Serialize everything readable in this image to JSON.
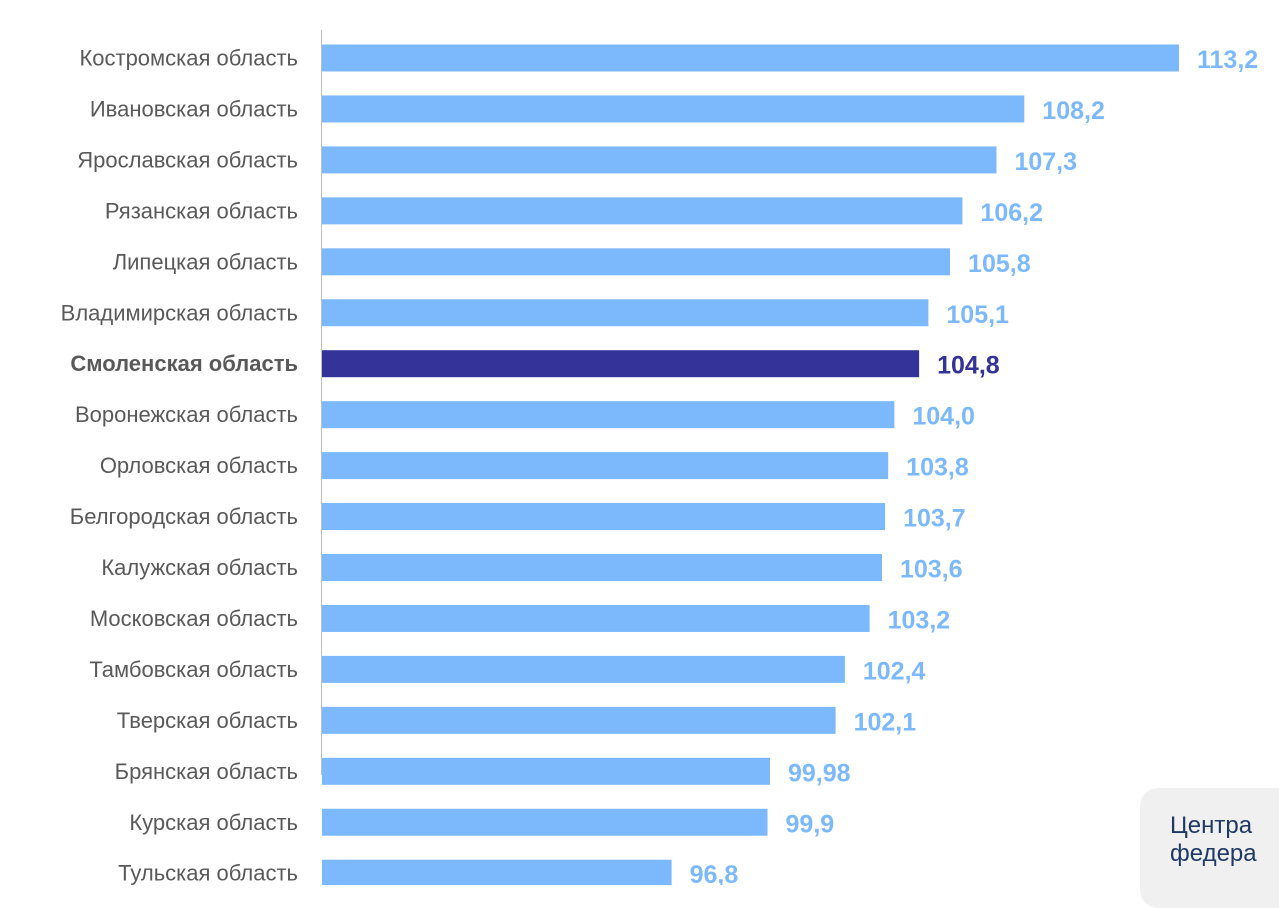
{
  "chart_data": {
    "type": "bar",
    "orientation": "horizontal",
    "categories": [
      "Костромская область",
      "Ивановская область",
      "Ярославская область",
      "Рязанская область",
      "Липецкая область",
      "Владимирская область",
      "Смоленская область",
      "Воронежская область",
      "Орловская область",
      "Белгородская область",
      "Калужская область",
      "Московская область",
      "Тамбовская область",
      "Тверская область",
      "Брянская область",
      "Курская область",
      "Тульская область"
    ],
    "values": [
      113.2,
      108.2,
      107.3,
      106.2,
      105.8,
      105.1,
      104.8,
      104.0,
      103.8,
      103.7,
      103.6,
      103.2,
      102.4,
      102.1,
      99.98,
      99.9,
      96.8
    ],
    "value_labels": [
      "113,2",
      "108,2",
      "107,3",
      "106,2",
      "105,8",
      "105,1",
      "104,8",
      "104,0",
      "103,8",
      "103,7",
      "103,6",
      "103,2",
      "102,4",
      "102,1",
      "99,98",
      "99,9",
      "96,8"
    ],
    "highlighted": "Смоленская область",
    "xlim": [
      85.5,
      113.2
    ],
    "grid": false,
    "title": "",
    "xlabel": "",
    "ylabel": ""
  },
  "colors": {
    "bar": "#7cb9fc",
    "highlight_bar": "#333399",
    "value_label": "#7cb9fc",
    "highlight_value_label": "#333399"
  },
  "note": {
    "line1": "Центра",
    "line2": "федера"
  }
}
